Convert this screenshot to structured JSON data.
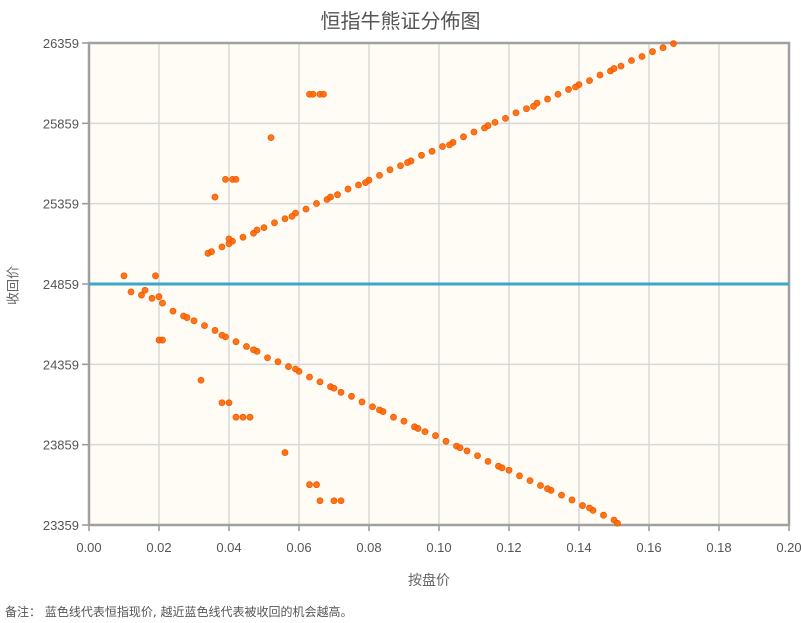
{
  "chart_data": {
    "type": "scatter",
    "title": "恒指牛熊证分佈图",
    "xlabel": "按盘价",
    "ylabel": "收回价",
    "xlim": [
      0,
      0.2
    ],
    "ylim": [
      23359,
      26359
    ],
    "x_ticks": [
      "0.00",
      "0.02",
      "0.04",
      "0.06",
      "0.08",
      "0.10",
      "0.12",
      "0.14",
      "0.16",
      "0.18",
      "0.20"
    ],
    "y_ticks": [
      "26359",
      "25859",
      "25359",
      "24859",
      "24359",
      "23859",
      "23359"
    ],
    "grid": true,
    "reference_line": {
      "y": 24859,
      "color": "#3aa8c8"
    },
    "point_color": "#ff6600",
    "background": "#fffcf5",
    "points": [
      [
        0.038,
        25090
      ],
      [
        0.041,
        25125
      ],
      [
        0.044,
        25150
      ],
      [
        0.047,
        25175
      ],
      [
        0.05,
        25210
      ],
      [
        0.053,
        25240
      ],
      [
        0.056,
        25265
      ],
      [
        0.059,
        25300
      ],
      [
        0.062,
        25325
      ],
      [
        0.065,
        25360
      ],
      [
        0.068,
        25385
      ],
      [
        0.071,
        25415
      ],
      [
        0.074,
        25450
      ],
      [
        0.077,
        25475
      ],
      [
        0.08,
        25505
      ],
      [
        0.083,
        25535
      ],
      [
        0.086,
        25570
      ],
      [
        0.089,
        25595
      ],
      [
        0.092,
        25625
      ],
      [
        0.095,
        25660
      ],
      [
        0.098,
        25685
      ],
      [
        0.101,
        25715
      ],
      [
        0.104,
        25740
      ],
      [
        0.107,
        25775
      ],
      [
        0.11,
        25805
      ],
      [
        0.113,
        25830
      ],
      [
        0.116,
        25865
      ],
      [
        0.119,
        25890
      ],
      [
        0.122,
        25925
      ],
      [
        0.125,
        25950
      ],
      [
        0.128,
        25985
      ],
      [
        0.131,
        26010
      ],
      [
        0.134,
        26040
      ],
      [
        0.137,
        26070
      ],
      [
        0.14,
        26100
      ],
      [
        0.143,
        26125
      ],
      [
        0.146,
        26160
      ],
      [
        0.149,
        26185
      ],
      [
        0.152,
        26215
      ],
      [
        0.155,
        26250
      ],
      [
        0.158,
        26275
      ],
      [
        0.161,
        26305
      ],
      [
        0.164,
        26330
      ],
      [
        0.167,
        26355
      ],
      [
        0.048,
        25195
      ],
      [
        0.058,
        25280
      ],
      [
        0.069,
        25400
      ],
      [
        0.079,
        25490
      ],
      [
        0.091,
        25615
      ],
      [
        0.103,
        25725
      ],
      [
        0.114,
        25845
      ],
      [
        0.127,
        25965
      ],
      [
        0.139,
        26085
      ],
      [
        0.15,
        26200
      ],
      [
        0.012,
        24810
      ],
      [
        0.015,
        24790
      ],
      [
        0.016,
        24820
      ],
      [
        0.018,
        24770
      ],
      [
        0.021,
        24740
      ],
      [
        0.024,
        24690
      ],
      [
        0.027,
        24660
      ],
      [
        0.03,
        24630
      ],
      [
        0.033,
        24600
      ],
      [
        0.036,
        24570
      ],
      [
        0.039,
        24530
      ],
      [
        0.042,
        24500
      ],
      [
        0.045,
        24470
      ],
      [
        0.048,
        24440
      ],
      [
        0.051,
        24400
      ],
      [
        0.054,
        24375
      ],
      [
        0.057,
        24345
      ],
      [
        0.06,
        24315
      ],
      [
        0.063,
        24280
      ],
      [
        0.066,
        24250
      ],
      [
        0.069,
        24220
      ],
      [
        0.072,
        24185
      ],
      [
        0.075,
        24160
      ],
      [
        0.078,
        24125
      ],
      [
        0.081,
        24095
      ],
      [
        0.084,
        24065
      ],
      [
        0.087,
        24030
      ],
      [
        0.09,
        24005
      ],
      [
        0.093,
        23970
      ],
      [
        0.096,
        23940
      ],
      [
        0.099,
        23915
      ],
      [
        0.102,
        23880
      ],
      [
        0.105,
        23850
      ],
      [
        0.108,
        23820
      ],
      [
        0.111,
        23790
      ],
      [
        0.114,
        23755
      ],
      [
        0.117,
        23725
      ],
      [
        0.12,
        23700
      ],
      [
        0.123,
        23665
      ],
      [
        0.126,
        23635
      ],
      [
        0.129,
        23605
      ],
      [
        0.132,
        23575
      ],
      [
        0.135,
        23545
      ],
      [
        0.138,
        23515
      ],
      [
        0.141,
        23480
      ],
      [
        0.144,
        23450
      ],
      [
        0.147,
        23420
      ],
      [
        0.15,
        23390
      ],
      [
        0.151,
        23370
      ],
      [
        0.02,
        24780
      ],
      [
        0.028,
        24650
      ],
      [
        0.038,
        24540
      ],
      [
        0.047,
        24450
      ],
      [
        0.059,
        24330
      ],
      [
        0.07,
        24210
      ],
      [
        0.083,
        24075
      ],
      [
        0.094,
        23960
      ],
      [
        0.106,
        23840
      ],
      [
        0.118,
        23715
      ],
      [
        0.131,
        23585
      ],
      [
        0.143,
        23465
      ],
      [
        0.01,
        24910
      ],
      [
        0.019,
        24910
      ],
      [
        0.02,
        24510
      ],
      [
        0.021,
        24510
      ],
      [
        0.032,
        24260
      ],
      [
        0.038,
        24120
      ],
      [
        0.04,
        24120
      ],
      [
        0.042,
        24030
      ],
      [
        0.044,
        24030
      ],
      [
        0.046,
        24030
      ],
      [
        0.056,
        23810
      ],
      [
        0.063,
        23610
      ],
      [
        0.065,
        23610
      ],
      [
        0.066,
        23510
      ],
      [
        0.07,
        23510
      ],
      [
        0.072,
        23510
      ],
      [
        0.034,
        25050
      ],
      [
        0.035,
        25060
      ],
      [
        0.04,
        25110
      ],
      [
        0.04,
        25140
      ],
      [
        0.036,
        25400
      ],
      [
        0.039,
        25510
      ],
      [
        0.041,
        25510
      ],
      [
        0.042,
        25510
      ],
      [
        0.052,
        25770
      ],
      [
        0.063,
        26040
      ],
      [
        0.064,
        26040
      ],
      [
        0.066,
        26040
      ],
      [
        0.067,
        26040
      ]
    ]
  },
  "note": "备注： 蓝色线代表恒指现价, 越近蓝色线代表被收回的机会越高。"
}
